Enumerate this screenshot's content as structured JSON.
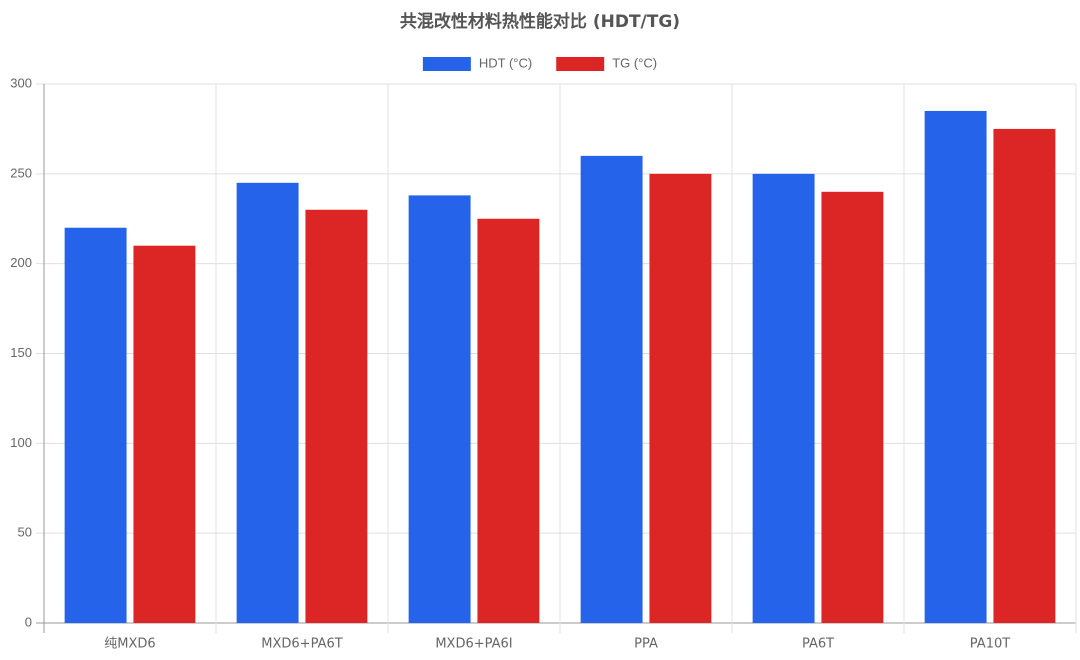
{
  "chart_data": {
    "type": "bar",
    "title": "共混改性材料热性能对比 (HDT/TG)",
    "categories": [
      "纯MXD6",
      "MXD6+PA6T",
      "MXD6+PA6I",
      "PPA",
      "PA6T",
      "PA10T"
    ],
    "series": [
      {
        "name": "HDT (°C)",
        "color": "#2563eb",
        "values": [
          220,
          245,
          238,
          260,
          250,
          285
        ]
      },
      {
        "name": "TG (°C)",
        "color": "#dc2626",
        "values": [
          210,
          230,
          225,
          250,
          240,
          275
        ]
      }
    ],
    "ylim": [
      0,
      300
    ],
    "yticks": [
      0,
      50,
      100,
      150,
      200,
      250,
      300
    ],
    "grid": true,
    "legend": "top"
  }
}
